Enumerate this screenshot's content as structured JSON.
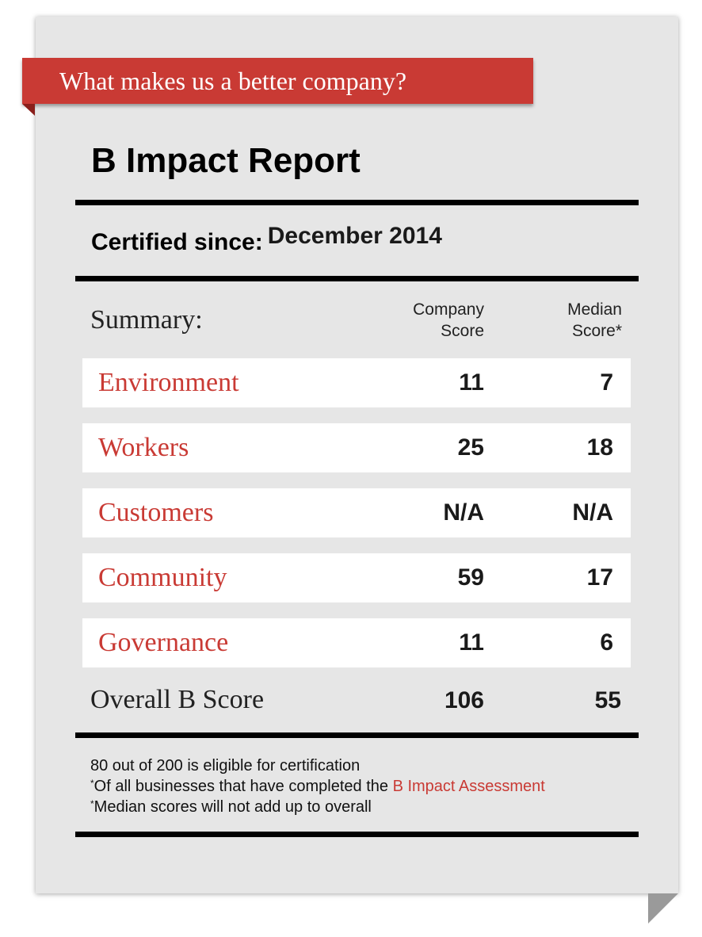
{
  "banner": {
    "text": "What makes us a better company?"
  },
  "report": {
    "title": "B Impact Report",
    "certified_label": "Certified since:",
    "certified_value": "December 2014"
  },
  "summary": {
    "label": "Summary:",
    "company_header_line1": "Company",
    "company_header_line2": "Score",
    "median_header_line1": "Median",
    "median_header_line2": "Score*",
    "rows": [
      {
        "label": "Environment",
        "company": "11",
        "median": "7"
      },
      {
        "label": "Workers",
        "company": "25",
        "median": "18"
      },
      {
        "label": "Customers",
        "company": "N/A",
        "median": "N/A"
      },
      {
        "label": "Community",
        "company": "59",
        "median": "17"
      },
      {
        "label": "Governance",
        "company": "11",
        "median": "6"
      }
    ],
    "overall": {
      "label": "Overall B Score",
      "company": "106",
      "median": "55"
    }
  },
  "notes": {
    "line1": "80 out of 200 is eligible for certification",
    "line2_marker": "*",
    "line2_text": "Of all businesses that have completed the ",
    "line2_link": "B Impact Assessment",
    "line3_marker": "*",
    "line3_text": "Median scores will not add up to overall"
  },
  "colors": {
    "accent": "#c93a34",
    "card_background": "#e6e6e6",
    "row_background": "#ffffff",
    "rule": "#000000"
  }
}
